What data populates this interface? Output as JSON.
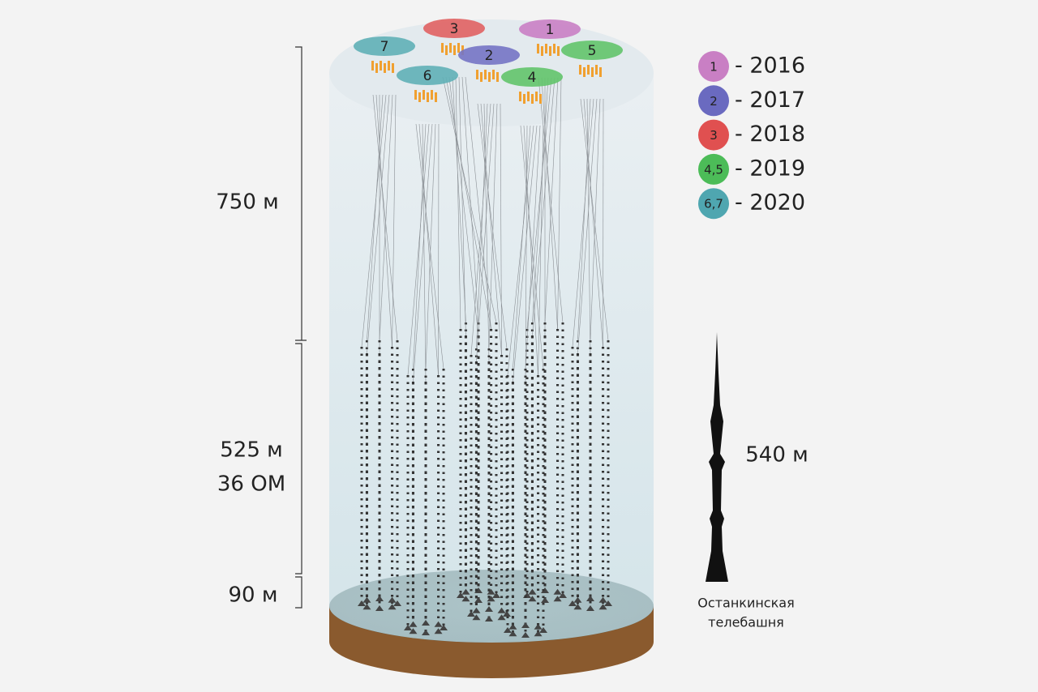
{
  "clusters": [
    "3",
    "1",
    "7",
    "2",
    "5",
    "6",
    "4"
  ],
  "legend": [
    {
      "badge": "1",
      "year": "- 2016"
    },
    {
      "badge": "2",
      "year": "- 2017"
    },
    {
      "badge": "3",
      "year": "- 2018"
    },
    {
      "badge": "4,5",
      "year": "- 2019"
    },
    {
      "badge": "6,7",
      "year": "- 2020"
    }
  ],
  "dimensions": {
    "top": "750 м",
    "middle": [
      "525 м",
      "36 ОМ"
    ],
    "bottom": "90 м"
  },
  "tower": {
    "height": "540 м",
    "caption": [
      "Останкинская",
      "телебашня"
    ]
  }
}
